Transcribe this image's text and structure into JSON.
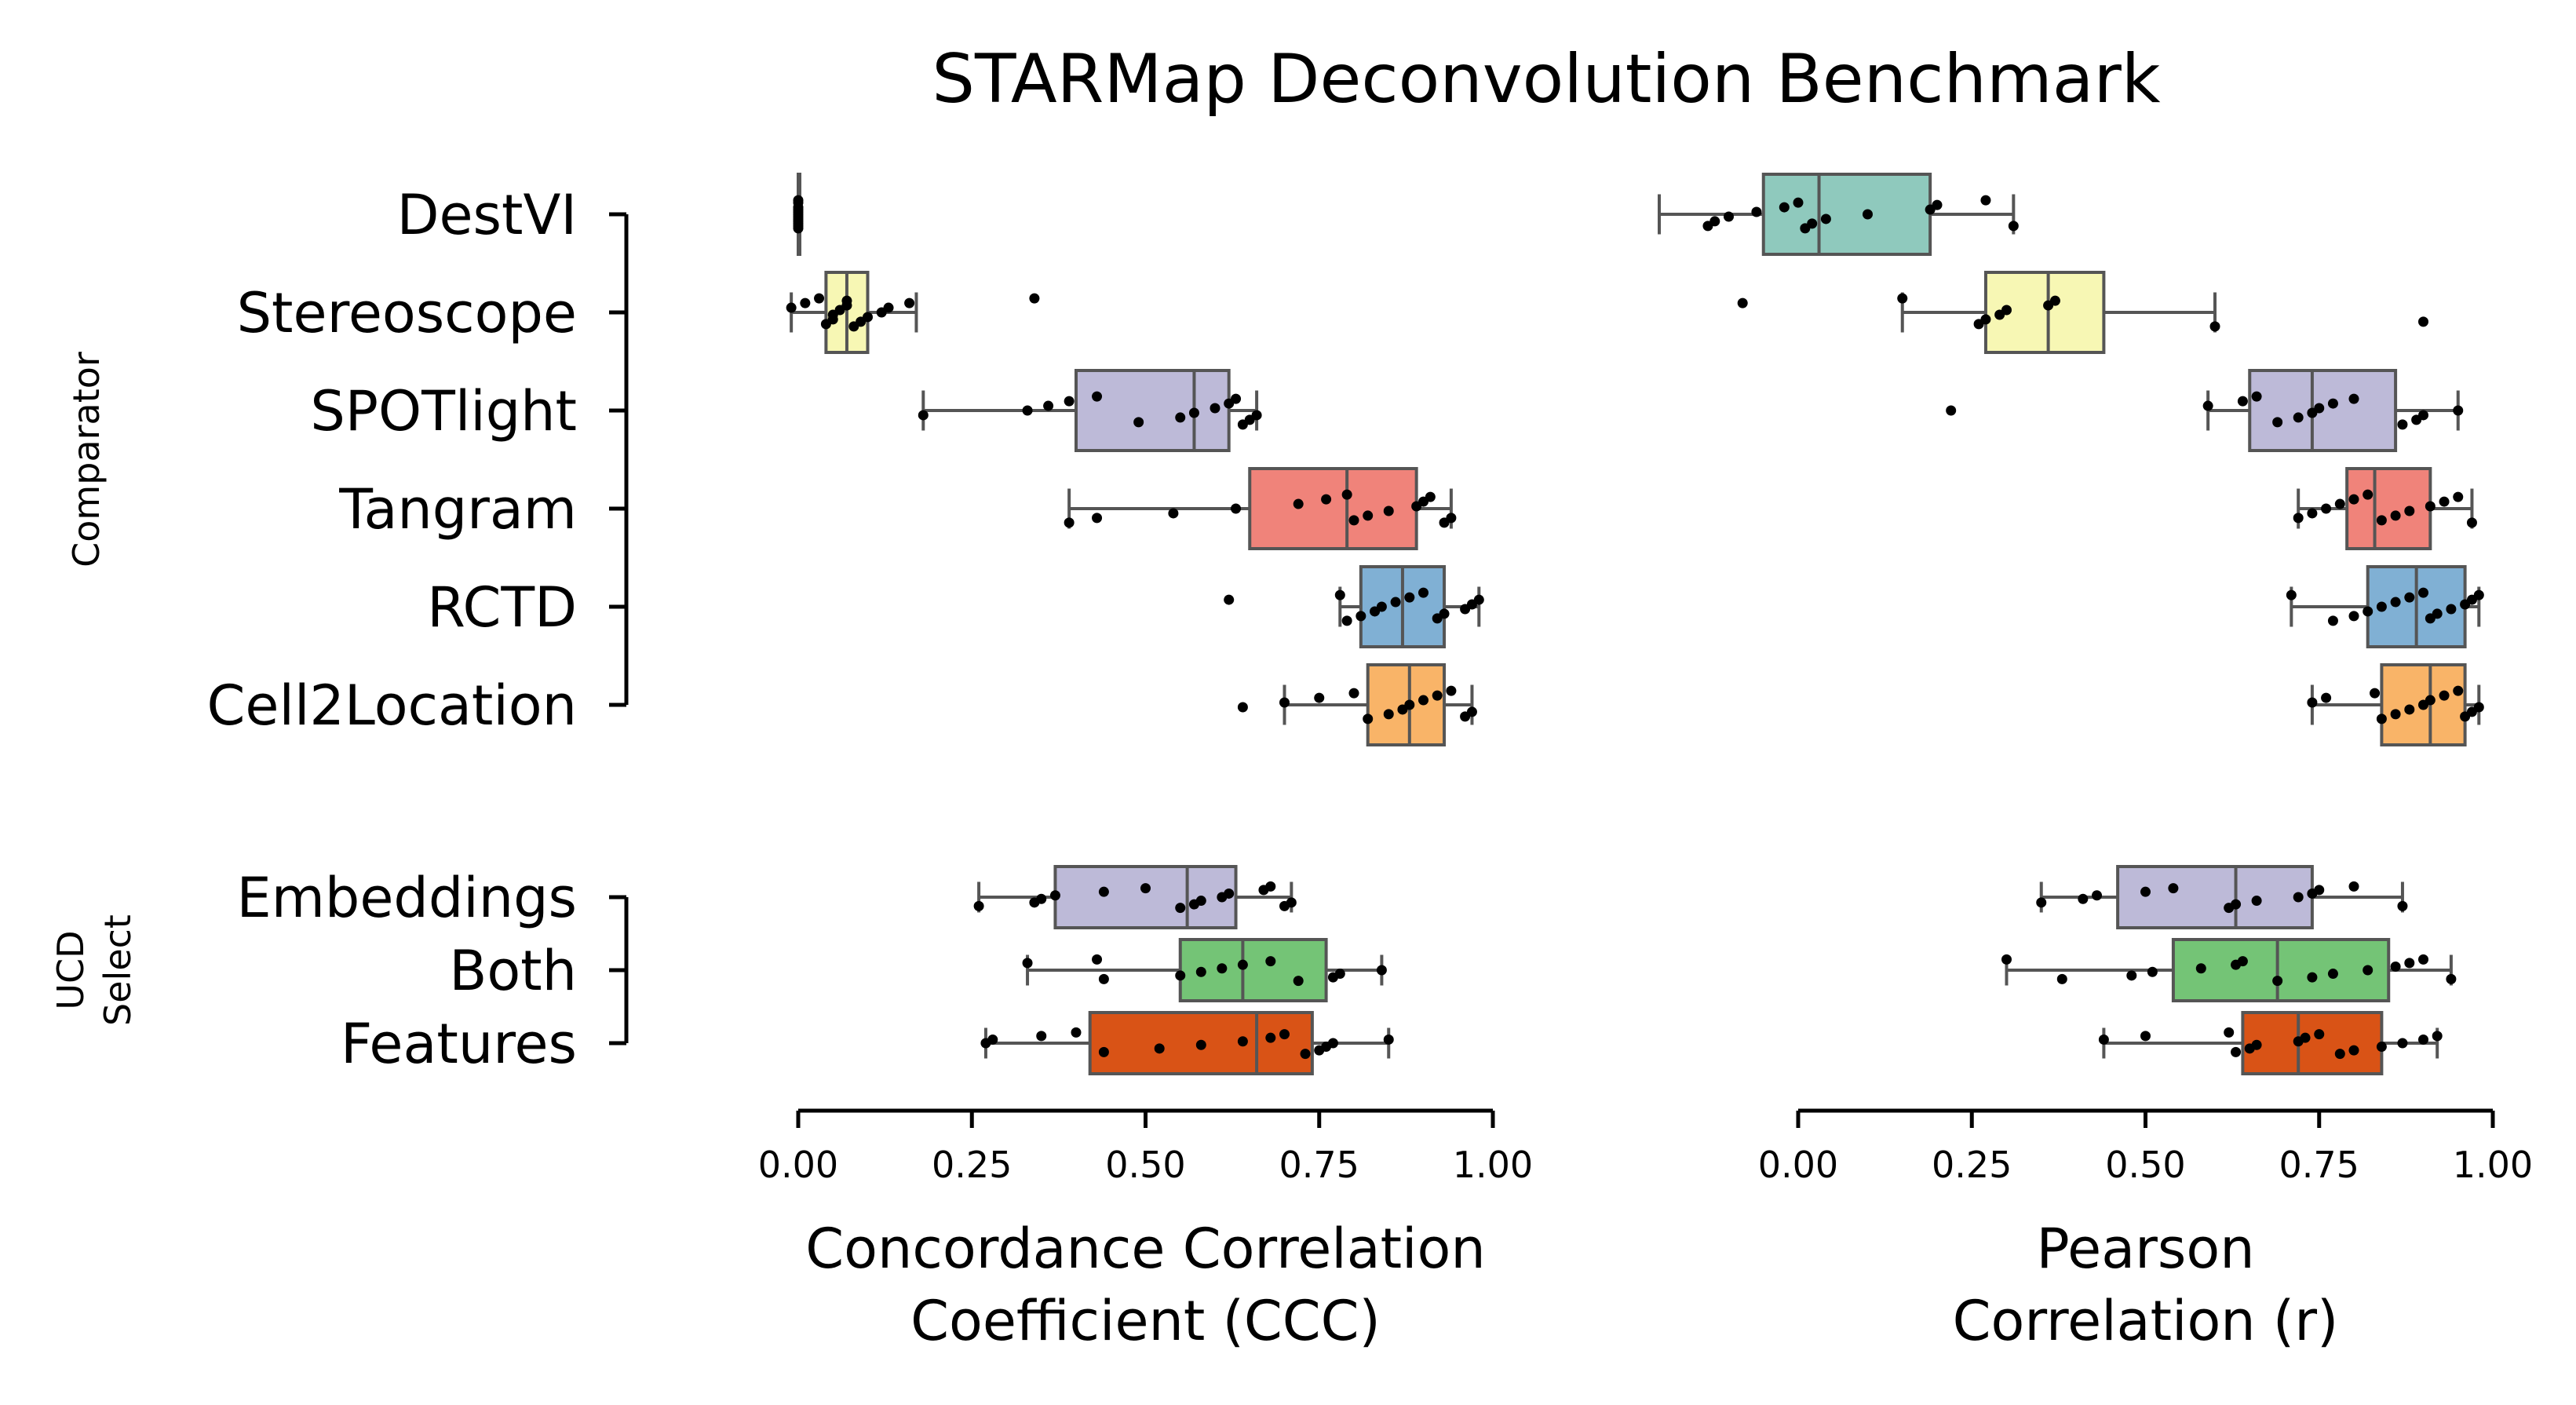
{
  "chart_data": {
    "type": "box",
    "title": "STARMap Deconvolution Benchmark",
    "groups": [
      {
        "label": "Comparator",
        "categories": [
          "DestVI",
          "Stereoscope",
          "SPOTlight",
          "Tangram",
          "RCTD",
          "Cell2Location"
        ]
      },
      {
        "label": "UCD\nSelect",
        "categories": [
          "Embeddings",
          "Both",
          "Features"
        ]
      }
    ],
    "colors": {
      "DestVI": "#8fc9bd",
      "Stereoscope": "#f7f7b4",
      "SPOTlight": "#bdbad8",
      "Tangram": "#f0837a",
      "RCTD": "#80b0d4",
      "Cell2Location": "#f9b468",
      "Embeddings": "#bdbad8",
      "Both": "#74c476",
      "Features": "#d95316"
    },
    "panels": [
      {
        "xlabel": "Concordance Correlation\nCoefficient (CCC)",
        "xlim": [
          0,
          1
        ],
        "xticks": [
          "0.00",
          "0.25",
          "0.50",
          "0.75",
          "1.00"
        ],
        "boxes": {
          "DestVI": {
            "whislo": 0.0,
            "q1": 0.0,
            "med": 0.0,
            "q3": 0.0,
            "whishi": 0.0,
            "points": [
              0.0,
              0.0,
              0.0,
              0.0,
              0.0,
              0.0,
              0.0,
              0.0,
              0.0,
              0.0,
              0.0,
              0.0
            ]
          },
          "Stereoscope": {
            "whislo": -0.01,
            "q1": 0.04,
            "med": 0.07,
            "q3": 0.1,
            "whishi": 0.17,
            "points": [
              -0.01,
              0.01,
              0.03,
              0.04,
              0.05,
              0.05,
              0.06,
              0.07,
              0.07,
              0.08,
              0.09,
              0.1,
              0.12,
              0.13,
              0.16,
              0.34
            ]
          },
          "SPOTlight": {
            "whislo": 0.18,
            "q1": 0.4,
            "med": 0.57,
            "q3": 0.62,
            "whishi": 0.66,
            "points": [
              0.18,
              0.33,
              0.36,
              0.39,
              0.43,
              0.49,
              0.55,
              0.57,
              0.6,
              0.62,
              0.63,
              0.64,
              0.65,
              0.66
            ]
          },
          "Tangram": {
            "whislo": 0.39,
            "q1": 0.65,
            "med": 0.79,
            "q3": 0.89,
            "whishi": 0.94,
            "points": [
              0.39,
              0.43,
              0.54,
              0.63,
              0.72,
              0.76,
              0.79,
              0.8,
              0.82,
              0.85,
              0.89,
              0.9,
              0.91,
              0.93,
              0.94
            ]
          },
          "RCTD": {
            "whislo": 0.78,
            "q1": 0.81,
            "med": 0.87,
            "q3": 0.93,
            "whishi": 0.98,
            "points": [
              0.62,
              0.78,
              0.79,
              0.81,
              0.83,
              0.84,
              0.86,
              0.88,
              0.9,
              0.92,
              0.93,
              0.96,
              0.97,
              0.98
            ]
          },
          "Cell2Location": {
            "whislo": 0.7,
            "q1": 0.82,
            "med": 0.88,
            "q3": 0.93,
            "whishi": 0.97,
            "points": [
              0.64,
              0.7,
              0.75,
              0.8,
              0.82,
              0.85,
              0.87,
              0.88,
              0.9,
              0.92,
              0.94,
              0.96,
              0.97
            ]
          },
          "Embeddings": {
            "whislo": 0.26,
            "q1": 0.37,
            "med": 0.56,
            "q3": 0.63,
            "whishi": 0.71,
            "points": [
              0.26,
              0.34,
              0.35,
              0.37,
              0.44,
              0.5,
              0.55,
              0.57,
              0.58,
              0.61,
              0.62,
              0.67,
              0.68,
              0.7,
              0.71
            ]
          },
          "Both": {
            "whislo": 0.33,
            "q1": 0.55,
            "med": 0.64,
            "q3": 0.76,
            "whishi": 0.84,
            "points": [
              0.33,
              0.43,
              0.44,
              0.55,
              0.58,
              0.61,
              0.64,
              0.68,
              0.72,
              0.77,
              0.78,
              0.84
            ]
          },
          "Features": {
            "whislo": 0.27,
            "q1": 0.42,
            "med": 0.66,
            "q3": 0.74,
            "whishi": 0.85,
            "points": [
              0.27,
              0.28,
              0.35,
              0.4,
              0.44,
              0.52,
              0.58,
              0.64,
              0.68,
              0.7,
              0.73,
              0.75,
              0.76,
              0.77,
              0.85
            ]
          }
        }
      },
      {
        "xlabel": "Pearson\nCorrelation (r)",
        "xlim": [
          0,
          1
        ],
        "xticks": [
          "0.00",
          "0.25",
          "0.50",
          "0.75",
          "1.00"
        ],
        "boxes": {
          "DestVI": {
            "whislo": -0.2,
            "q1": -0.05,
            "med": 0.03,
            "q3": 0.19,
            "whishi": 0.31,
            "points": [
              -0.13,
              -0.12,
              -0.1,
              -0.06,
              -0.02,
              0.0,
              0.01,
              0.02,
              0.04,
              0.1,
              0.19,
              0.2,
              0.27,
              0.31
            ]
          },
          "Stereoscope": {
            "whislo": 0.15,
            "q1": 0.27,
            "med": 0.36,
            "q3": 0.44,
            "whishi": 0.6,
            "points": [
              -0.08,
              0.15,
              0.26,
              0.27,
              0.29,
              0.3,
              0.36,
              0.37,
              0.6,
              0.9
            ]
          },
          "SPOTlight": {
            "whislo": 0.59,
            "q1": 0.65,
            "med": 0.74,
            "q3": 0.86,
            "whishi": 0.95,
            "points": [
              0.22,
              0.59,
              0.64,
              0.66,
              0.69,
              0.72,
              0.74,
              0.75,
              0.77,
              0.8,
              0.87,
              0.89,
              0.9,
              0.95
            ]
          },
          "Tangram": {
            "whislo": 0.72,
            "q1": 0.79,
            "med": 0.83,
            "q3": 0.91,
            "whishi": 0.97,
            "points": [
              0.72,
              0.74,
              0.76,
              0.78,
              0.8,
              0.82,
              0.84,
              0.86,
              0.88,
              0.91,
              0.93,
              0.95,
              0.97
            ]
          },
          "RCTD": {
            "whislo": 0.71,
            "q1": 0.82,
            "med": 0.89,
            "q3": 0.96,
            "whishi": 0.98,
            "points": [
              0.71,
              0.77,
              0.8,
              0.82,
              0.84,
              0.86,
              0.88,
              0.9,
              0.91,
              0.92,
              0.94,
              0.96,
              0.97,
              0.98
            ]
          },
          "Cell2Location": {
            "whislo": 0.74,
            "q1": 0.84,
            "med": 0.91,
            "q3": 0.96,
            "whishi": 0.98,
            "points": [
              0.74,
              0.76,
              0.83,
              0.84,
              0.86,
              0.88,
              0.9,
              0.91,
              0.93,
              0.95,
              0.96,
              0.97,
              0.98
            ]
          },
          "Embeddings": {
            "whislo": 0.35,
            "q1": 0.46,
            "med": 0.63,
            "q3": 0.74,
            "whishi": 0.87,
            "points": [
              0.35,
              0.41,
              0.43,
              0.5,
              0.54,
              0.62,
              0.63,
              0.66,
              0.72,
              0.74,
              0.75,
              0.8,
              0.87
            ]
          },
          "Both": {
            "whislo": 0.3,
            "q1": 0.54,
            "med": 0.69,
            "q3": 0.85,
            "whishi": 0.94,
            "points": [
              0.3,
              0.38,
              0.48,
              0.51,
              0.58,
              0.63,
              0.64,
              0.69,
              0.74,
              0.77,
              0.82,
              0.86,
              0.88,
              0.9,
              0.94
            ]
          },
          "Features": {
            "whislo": 0.44,
            "q1": 0.64,
            "med": 0.72,
            "q3": 0.84,
            "whishi": 0.92,
            "points": [
              0.44,
              0.5,
              0.62,
              0.63,
              0.65,
              0.66,
              0.72,
              0.73,
              0.75,
              0.78,
              0.8,
              0.84,
              0.87,
              0.9,
              0.92
            ]
          }
        }
      }
    ]
  }
}
